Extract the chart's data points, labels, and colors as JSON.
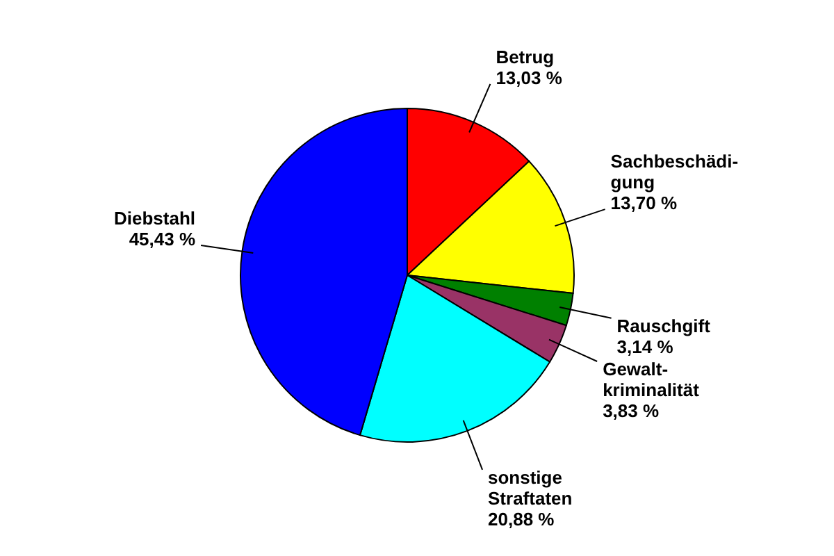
{
  "chart_data": {
    "type": "pie",
    "categories": [
      "Betrug",
      "Sachbeschädi-gung",
      "Rauschgift",
      "Gewalt-kriminalität",
      "sonstige Straftaten",
      "Diebstahl"
    ],
    "values": [
      13.03,
      13.7,
      3.14,
      3.83,
      20.88,
      45.43
    ],
    "colors": [
      "#ff0000",
      "#ffff00",
      "#008000",
      "#993366",
      "#00ffff",
      "#0000ff"
    ],
    "value_labels": [
      "13,03 %",
      "13,70 %",
      "3,14 %",
      "3,83 %",
      "20,88 %",
      "45,43 %"
    ]
  }
}
